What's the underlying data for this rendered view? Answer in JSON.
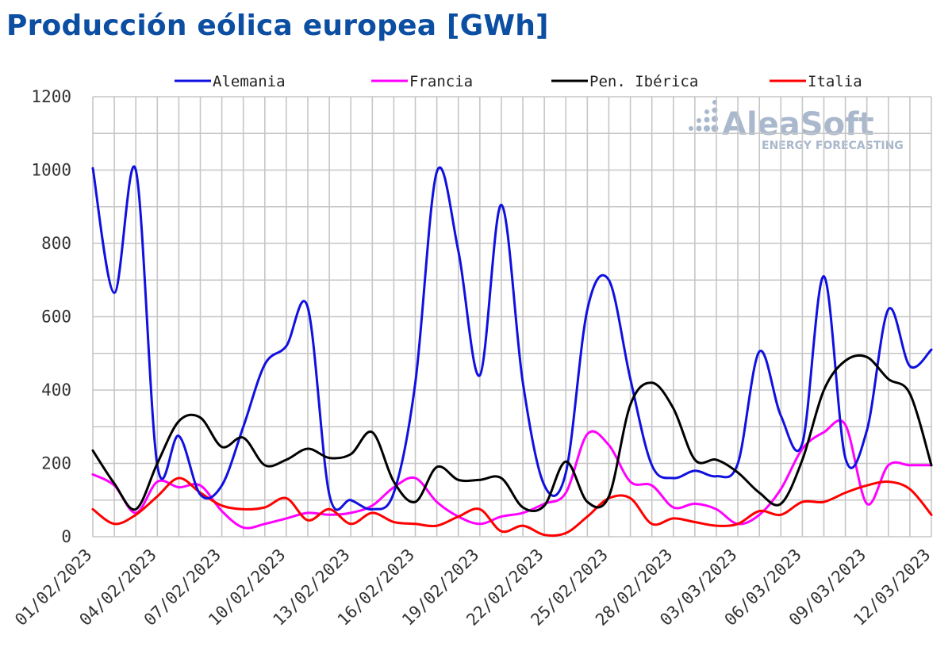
{
  "title": "Producción eólica europea [GWh]",
  "watermark": {
    "brand": "AleaSoft",
    "tagline": "ENERGY FORECASTING"
  },
  "chart_data": {
    "type": "line",
    "title": "Producción eólica europea [GWh]",
    "ylim": [
      0,
      1200
    ],
    "yticks": [
      0,
      200,
      400,
      600,
      800,
      1000,
      1200
    ],
    "grid": true,
    "legend_position": "top",
    "x_start": "01/02/2023",
    "x_end": "12/03/2023",
    "xtick_labels": [
      "01/02/2023",
      "04/02/2023",
      "07/02/2023",
      "10/02/2023",
      "13/02/2023",
      "16/02/2023",
      "19/02/2023",
      "22/02/2023",
      "25/02/2023",
      "28/02/2023",
      "03/03/2023",
      "06/03/2023",
      "09/03/2023",
      "12/03/2023"
    ],
    "x": [
      "01/02/2023",
      "02/02/2023",
      "03/02/2023",
      "04/02/2023",
      "05/02/2023",
      "06/02/2023",
      "07/02/2023",
      "08/02/2023",
      "09/02/2023",
      "10/02/2023",
      "11/02/2023",
      "12/02/2023",
      "13/02/2023",
      "14/02/2023",
      "15/02/2023",
      "16/02/2023",
      "17/02/2023",
      "18/02/2023",
      "19/02/2023",
      "20/02/2023",
      "21/02/2023",
      "22/02/2023",
      "23/02/2023",
      "24/02/2023",
      "25/02/2023",
      "26/02/2023",
      "27/02/2023",
      "28/02/2023",
      "01/03/2023",
      "02/03/2023",
      "03/03/2023",
      "04/03/2023",
      "05/03/2023",
      "06/03/2023",
      "07/03/2023",
      "08/03/2023",
      "09/03/2023",
      "10/03/2023",
      "11/03/2023",
      "12/03/2023"
    ],
    "series": [
      {
        "name": "Alemania",
        "color": "#1010e0",
        "values": [
          1005,
          665,
          1000,
          195,
          275,
          115,
          140,
          300,
          470,
          520,
          625,
          115,
          100,
          75,
          120,
          420,
          995,
          780,
          440,
          905,
          420,
          140,
          175,
          620,
          700,
          430,
          195,
          160,
          180,
          165,
          200,
          505,
          330,
          255,
          710,
          215,
          290,
          620,
          465,
          510
        ]
      },
      {
        "name": "Francia",
        "color": "#ff00ff",
        "values": [
          170,
          140,
          65,
          150,
          135,
          140,
          70,
          25,
          35,
          50,
          65,
          60,
          65,
          85,
          135,
          160,
          95,
          55,
          35,
          55,
          65,
          90,
          120,
          280,
          250,
          150,
          140,
          80,
          90,
          75,
          35,
          60,
          130,
          240,
          285,
          305,
          90,
          195,
          195,
          195
        ]
      },
      {
        "name": "Pen. Ibérica",
        "color": "#000000",
        "values": [
          235,
          145,
          75,
          200,
          315,
          325,
          245,
          270,
          195,
          210,
          240,
          215,
          225,
          285,
          150,
          95,
          190,
          155,
          155,
          160,
          80,
          85,
          205,
          95,
          110,
          360,
          420,
          350,
          210,
          210,
          175,
          120,
          90,
          210,
          400,
          480,
          490,
          430,
          390,
          195
        ]
      },
      {
        "name": "Italia",
        "color": "#ff0000",
        "values": [
          75,
          35,
          60,
          110,
          160,
          120,
          85,
          75,
          80,
          105,
          45,
          75,
          35,
          65,
          40,
          35,
          30,
          55,
          75,
          15,
          30,
          5,
          10,
          55,
          105,
          105,
          35,
          50,
          40,
          30,
          35,
          70,
          60,
          95,
          95,
          120,
          140,
          150,
          130,
          60
        ]
      }
    ]
  }
}
